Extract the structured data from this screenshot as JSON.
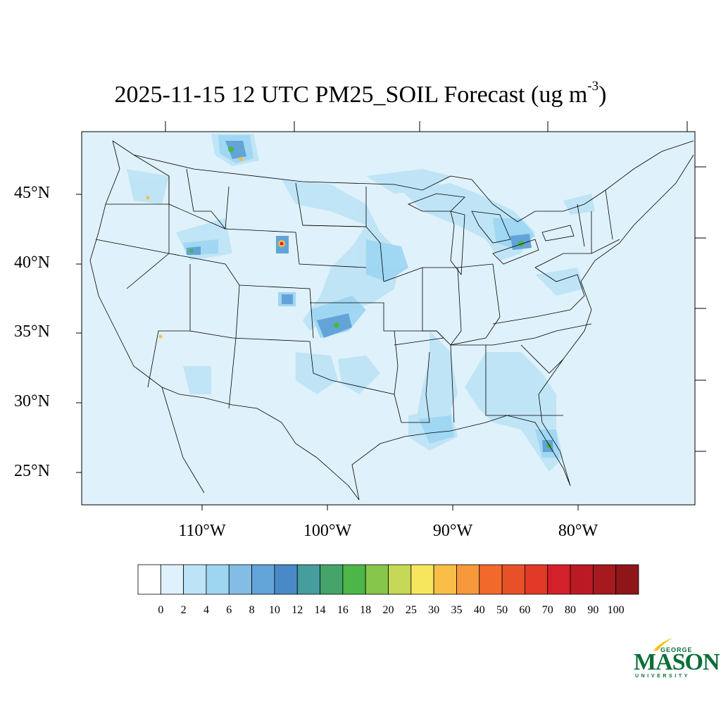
{
  "title": {
    "main": "2025-11-15 12 UTC PM25_SOIL Forecast (ug m",
    "exponent": "-3",
    "close": ")"
  },
  "map": {
    "background_color": "#dff1fa",
    "latitude_labels": [
      "45°N",
      "40°N",
      "35°N",
      "30°N",
      "25°N"
    ],
    "longitude_labels": [
      "110°W",
      "100°W",
      "90°W",
      "80°W"
    ]
  },
  "colorbar": {
    "labels": [
      "0",
      "2",
      "4",
      "6",
      "8",
      "10",
      "12",
      "14",
      "16",
      "18",
      "20",
      "25",
      "30",
      "35",
      "40",
      "50",
      "60",
      "70",
      "80",
      "90",
      "100"
    ],
    "colors": [
      "#ffffff",
      "#dff1fa",
      "#bde4f6",
      "#9ed6f2",
      "#83bde6",
      "#63a4d8",
      "#4a89c8",
      "#459d9d",
      "#45a46a",
      "#4cb648",
      "#86c64a",
      "#c4d855",
      "#f6e65e",
      "#f8be48",
      "#f7983d",
      "#f26a2b",
      "#e85127",
      "#e03927",
      "#d4202a",
      "#ba1a24",
      "#a5191f",
      "#8e1619"
    ]
  },
  "logo": {
    "line1": "GEORGE",
    "line2": "MASON",
    "line3": "UNIVERSITY"
  }
}
